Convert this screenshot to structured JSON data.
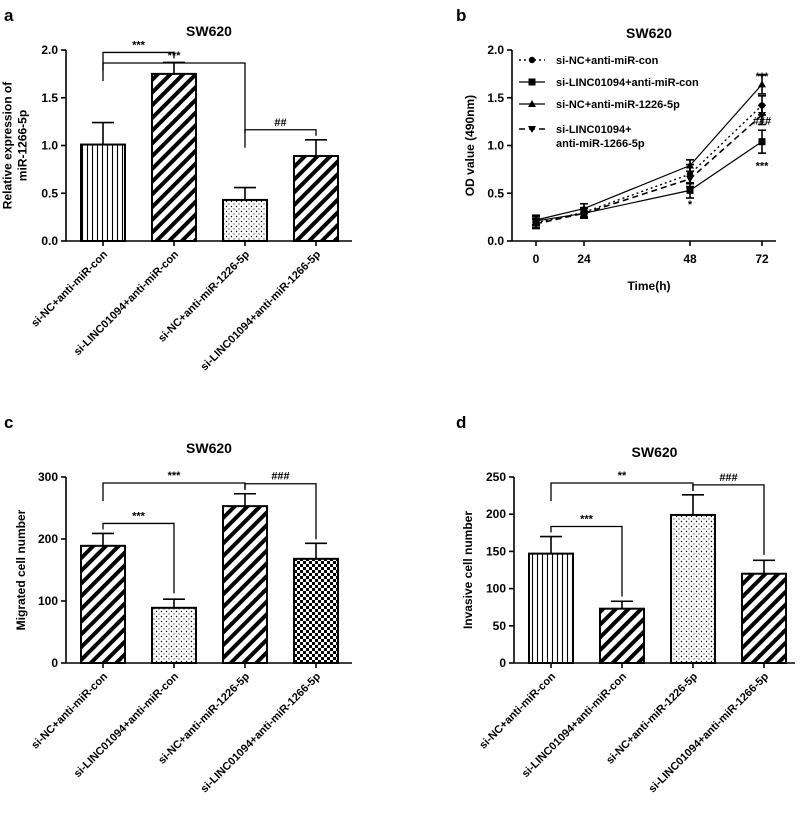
{
  "chart_data": [
    {
      "panel": "a",
      "type": "bar",
      "title": "SW620",
      "ylabel": "Relative expression of miR-1266-5p",
      "ylabel_lines": [
        "Relative expression of",
        "miR-1266-5p"
      ],
      "xlabel": "",
      "ylim": [
        0,
        2.0
      ],
      "yticks": [
        "0.0",
        "0.5",
        "1.0",
        "1.5",
        "2.0"
      ],
      "categories": [
        "si-NC+anti-miR-con",
        "si-LINC01094+anti-miR-con",
        "si-NC+anti-miR-1226-5p",
        "si-LINC01094+anti-miR-1266-5p"
      ],
      "values": [
        1.01,
        1.75,
        0.43,
        0.89
      ],
      "errors": [
        0.23,
        0.12,
        0.13,
        0.17
      ],
      "patterns": [
        "vlines",
        "diag",
        "dots",
        "diag"
      ],
      "significance": [
        {
          "from": 0,
          "to": 1,
          "label": "***"
        },
        {
          "from": 0,
          "to": 2,
          "label": "***"
        },
        {
          "from": 2,
          "to": 3,
          "label": "##"
        }
      ]
    },
    {
      "panel": "b",
      "type": "line",
      "title": "SW620",
      "ylabel": "OD value (490nm)",
      "xlabel": "Time(h)",
      "x": [
        0,
        24,
        48,
        72
      ],
      "xticks": [
        "0",
        "24",
        "48",
        "72"
      ],
      "ylim": [
        0,
        2.0
      ],
      "yticks": [
        "0.0",
        "0.5",
        "1.0",
        "1.5",
        "2.0"
      ],
      "series": [
        {
          "name": "si-NC+anti-miR-con",
          "values": [
            0.19,
            0.3,
            0.7,
            1.42
          ],
          "errors": [
            0.05,
            0.05,
            0.1,
            0.1
          ],
          "marker": "circle",
          "dash": "dot"
        },
        {
          "name": "si-LINC01094+anti-miR-con",
          "values": [
            0.21,
            0.29,
            0.53,
            1.04
          ],
          "errors": [
            0.05,
            0.05,
            0.08,
            0.12
          ],
          "marker": "square",
          "dash": "solid"
        },
        {
          "name": "si-NC+anti-miR-1226-5p",
          "values": [
            0.22,
            0.34,
            0.79,
            1.64
          ],
          "errors": [
            0.05,
            0.05,
            0.06,
            0.1
          ],
          "marker": "triangle",
          "dash": "solid"
        },
        {
          "name": "si-LINC01094+ anti-miR-1266-5p",
          "values": [
            0.18,
            0.29,
            0.65,
            1.32
          ],
          "errors": [
            0.05,
            0.05,
            0.08,
            0.1
          ],
          "marker": "triangle-down",
          "dash": "dash"
        }
      ],
      "legend_lines": [
        [
          "si-NC+anti-miR-con"
        ],
        [
          "si-LINC01094+anti-miR-con"
        ],
        [
          "si-NC+anti-miR-1226-5p"
        ],
        [
          "si-LINC01094+",
          "anti-miR-1266-5p"
        ]
      ],
      "annotations": [
        {
          "label": "*",
          "x": 48,
          "y": 0.39
        },
        {
          "label": "***",
          "x": 72,
          "y": 1.73
        },
        {
          "label": "###",
          "x": 72,
          "y": 1.26
        },
        {
          "label": "***",
          "x": 72,
          "y": 0.79
        }
      ]
    },
    {
      "panel": "c",
      "type": "bar",
      "title": "SW620",
      "ylabel": "Migrated cell number",
      "ylabel_lines": [
        "Migrated cell number"
      ],
      "xlabel": "",
      "ylim": [
        0,
        300
      ],
      "yticks": [
        "0",
        "100",
        "200",
        "300"
      ],
      "categories": [
        "si-NC+anti-miR-con",
        "si-LINC01094+anti-miR-con",
        "si-NC+anti-miR-1226-5p",
        "si-LINC01094+anti-miR-1266-5p"
      ],
      "values": [
        189,
        89,
        253,
        168
      ],
      "errors": [
        20,
        14,
        20,
        25
      ],
      "patterns": [
        "diag",
        "dots",
        "diag",
        "checker"
      ],
      "significance": [
        {
          "from": 0,
          "to": 1,
          "label": "***"
        },
        {
          "from": 0,
          "to": 2,
          "label": "***"
        },
        {
          "from": 2,
          "to": 3,
          "label": "###"
        }
      ]
    },
    {
      "panel": "d",
      "type": "bar",
      "title": "SW620",
      "ylabel": "Invasive cell number",
      "ylabel_lines": [
        "Invasive cell number"
      ],
      "xlabel": "",
      "ylim": [
        0,
        250
      ],
      "yticks": [
        "0",
        "50",
        "100",
        "150",
        "200",
        "250"
      ],
      "categories": [
        "si-NC+anti-miR-con",
        "si-LINC01094+anti-miR-con",
        "si-NC+anti-miR-1226-5p",
        "si-LINC01094+anti-miR-1266-5p"
      ],
      "values": [
        147,
        73,
        199,
        120
      ],
      "errors": [
        23,
        10,
        27,
        18
      ],
      "patterns": [
        "vlines",
        "diag",
        "dots",
        "diag"
      ],
      "significance": [
        {
          "from": 0,
          "to": 1,
          "label": "***"
        },
        {
          "from": 0,
          "to": 2,
          "label": "**"
        },
        {
          "from": 2,
          "to": 3,
          "label": "###"
        }
      ]
    }
  ],
  "panel_letters": [
    "a",
    "b",
    "c",
    "d"
  ]
}
